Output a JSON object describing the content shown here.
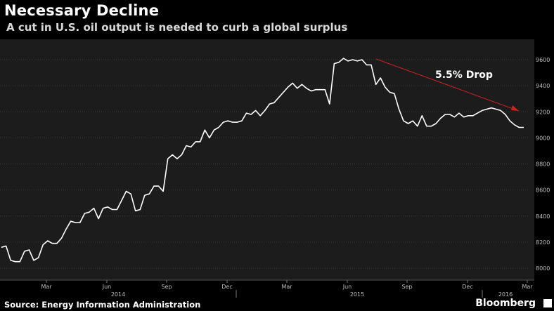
{
  "header": {
    "title": "Necessary Decline",
    "subtitle": "A cut in U.S. oil output is needed to curb a global surplus"
  },
  "footer": {
    "source": "Source: Energy Information Administration",
    "brand": "Bloomberg"
  },
  "colors": {
    "background": "#000000",
    "plot_background": "#1c1c1c",
    "line": "#ffffff",
    "trend_arrow": "#cc2222",
    "grid": "#3a3a3a"
  },
  "chart_data": {
    "type": "line",
    "title": "Necessary Decline",
    "subtitle": "A cut in U.S. oil output is needed to curb a global surplus",
    "xlabel": "",
    "ylabel": "",
    "ylim": [
      7950,
      9660
    ],
    "yticks": [
      8000,
      8200,
      8400,
      8600,
      8800,
      9000,
      9200,
      9400,
      9600
    ],
    "ytick_labels": [
      "8000",
      "8200",
      "8400",
      "8600",
      "8800",
      "9000",
      "9200",
      "9400",
      "9600"
    ],
    "y_axis_side": "right",
    "grid": true,
    "x_tick_labels": [
      "Mar",
      "Jun",
      "Sep",
      "Dec",
      "Mar",
      "Jun",
      "Sep",
      "Dec",
      "Mar"
    ],
    "x_year_labels": [
      "2014",
      "2015",
      "2016"
    ],
    "series": [
      {
        "values": [
          8160,
          8170,
          8060,
          8050,
          8050,
          8130,
          8140,
          8060,
          8080,
          8180,
          8210,
          8190,
          8190,
          8230,
          8300,
          8360,
          8350,
          8350,
          8420,
          8430,
          8460,
          8380,
          8460,
          8470,
          8450,
          8450,
          8520,
          8590,
          8570,
          8440,
          8450,
          8560,
          8570,
          8630,
          8630,
          8590,
          8840,
          8870,
          8840,
          8870,
          8940,
          8930,
          8970,
          8970,
          9060,
          9000,
          9060,
          9080,
          9120,
          9130,
          9120,
          9120,
          9130,
          9190,
          9180,
          9210,
          9170,
          9210,
          9260,
          9270,
          9310,
          9350,
          9390,
          9420,
          9380,
          9410,
          9380,
          9360,
          9370,
          9370,
          9370,
          9260,
          9570,
          9580,
          9610,
          9590,
          9600,
          9590,
          9600,
          9560,
          9560,
          9410,
          9460,
          9390,
          9350,
          9340,
          9220,
          9130,
          9110,
          9130,
          9090,
          9170,
          9090,
          9090,
          9110,
          9150,
          9180,
          9180,
          9160,
          9190,
          9160,
          9170,
          9170,
          9190,
          9210,
          9220,
          9230,
          9220,
          9210,
          9180,
          9130,
          9100,
          9080,
          9080
        ]
      }
    ],
    "annotations": [
      {
        "text": "5.5% Drop",
        "arrow_from": "peak Jun 2015",
        "arrow_to": "Feb 2016"
      }
    ]
  }
}
